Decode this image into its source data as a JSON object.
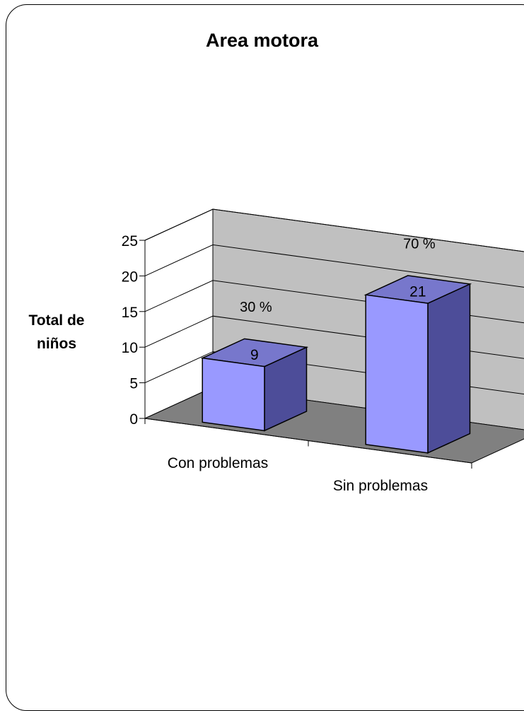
{
  "chart_data": {
    "type": "bar",
    "title": "Area motora",
    "ylabel": "Total de niños",
    "xlabel": "",
    "categories": [
      "Con problemas",
      "Sin problemas"
    ],
    "values": [
      9,
      21
    ],
    "percent_labels": [
      "30 %",
      "70 %"
    ],
    "ylim": [
      0,
      25
    ],
    "yticks": [
      0,
      5,
      10,
      15,
      20,
      25
    ],
    "grid": true,
    "style": "3d-column",
    "colors": {
      "bar_front": "#9999ff",
      "bar_top": "#7777cc",
      "bar_side": "#4d4d99",
      "back_wall": "#c0c0c0",
      "floor": "#808080"
    }
  }
}
